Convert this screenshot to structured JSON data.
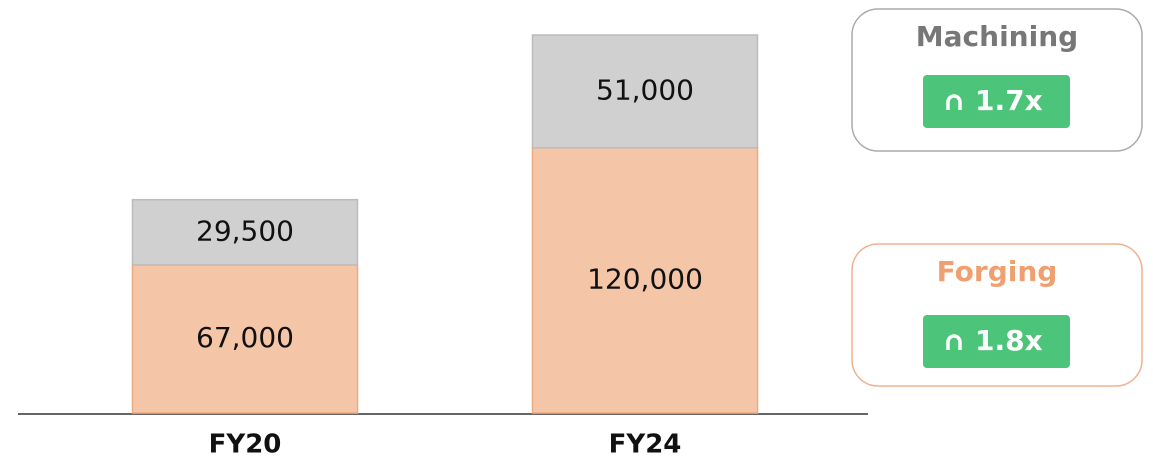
{
  "chart_data": {
    "type": "stacked_bar",
    "categories": [
      "FY20",
      "FY24"
    ],
    "series": [
      {
        "name": "Forging",
        "color": "#f5c5a8",
        "values": [
          67000,
          120000
        ],
        "value_labels": [
          "67,000",
          "120,000"
        ]
      },
      {
        "name": "Machining",
        "color": "#d0d0d0",
        "values": [
          29500,
          51000
        ],
        "value_labels": [
          "29,500",
          "51,000"
        ]
      }
    ],
    "annotations": [
      "1.8x",
      "1.7x"
    ]
  }
}
